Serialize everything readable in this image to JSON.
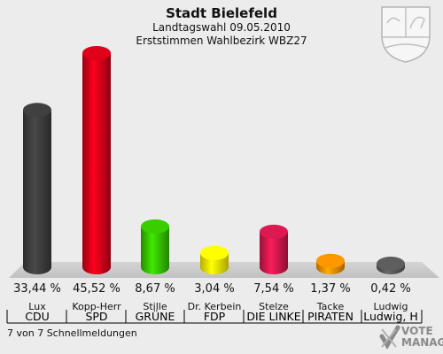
{
  "header": {
    "title": "Stadt Bielefeld",
    "subtitle": "Landtagswahl 09.05.2010",
    "subtitle2": "Erststimmen Wahlbezirk WBZ27"
  },
  "footer": {
    "note": "7 von 7 Schnellmeldungen"
  },
  "logo": {
    "name": "VOTE MANAGER",
    "icon": "nrw-coat-of-arms"
  },
  "chart_data": {
    "type": "bar",
    "categories": [
      "CDU",
      "SPD",
      "GRÜNE",
      "FDP",
      "DIE LINKE",
      "PIRATEN",
      "Ludwig, H"
    ],
    "candidates": [
      "Lux",
      "Kopp-Herr",
      "Stille",
      "Dr. Kerbein",
      "Stelze",
      "Tacke",
      "Ludwig"
    ],
    "values": [
      33.44,
      45.52,
      8.67,
      3.04,
      7.54,
      1.37,
      0.42
    ],
    "value_labels": [
      "33,44 %",
      "45,52 %",
      "8,67 %",
      "3,04 %",
      "7,54 %",
      "1,37 %",
      "0,42 %"
    ],
    "colors": [
      "#3a3a3a",
      "#cc0018",
      "#33bb00",
      "#f2ea00",
      "#c8174a",
      "#f08a00",
      "#555555"
    ],
    "ylim": [
      0,
      45.52
    ],
    "grid": false,
    "legend": "none"
  }
}
